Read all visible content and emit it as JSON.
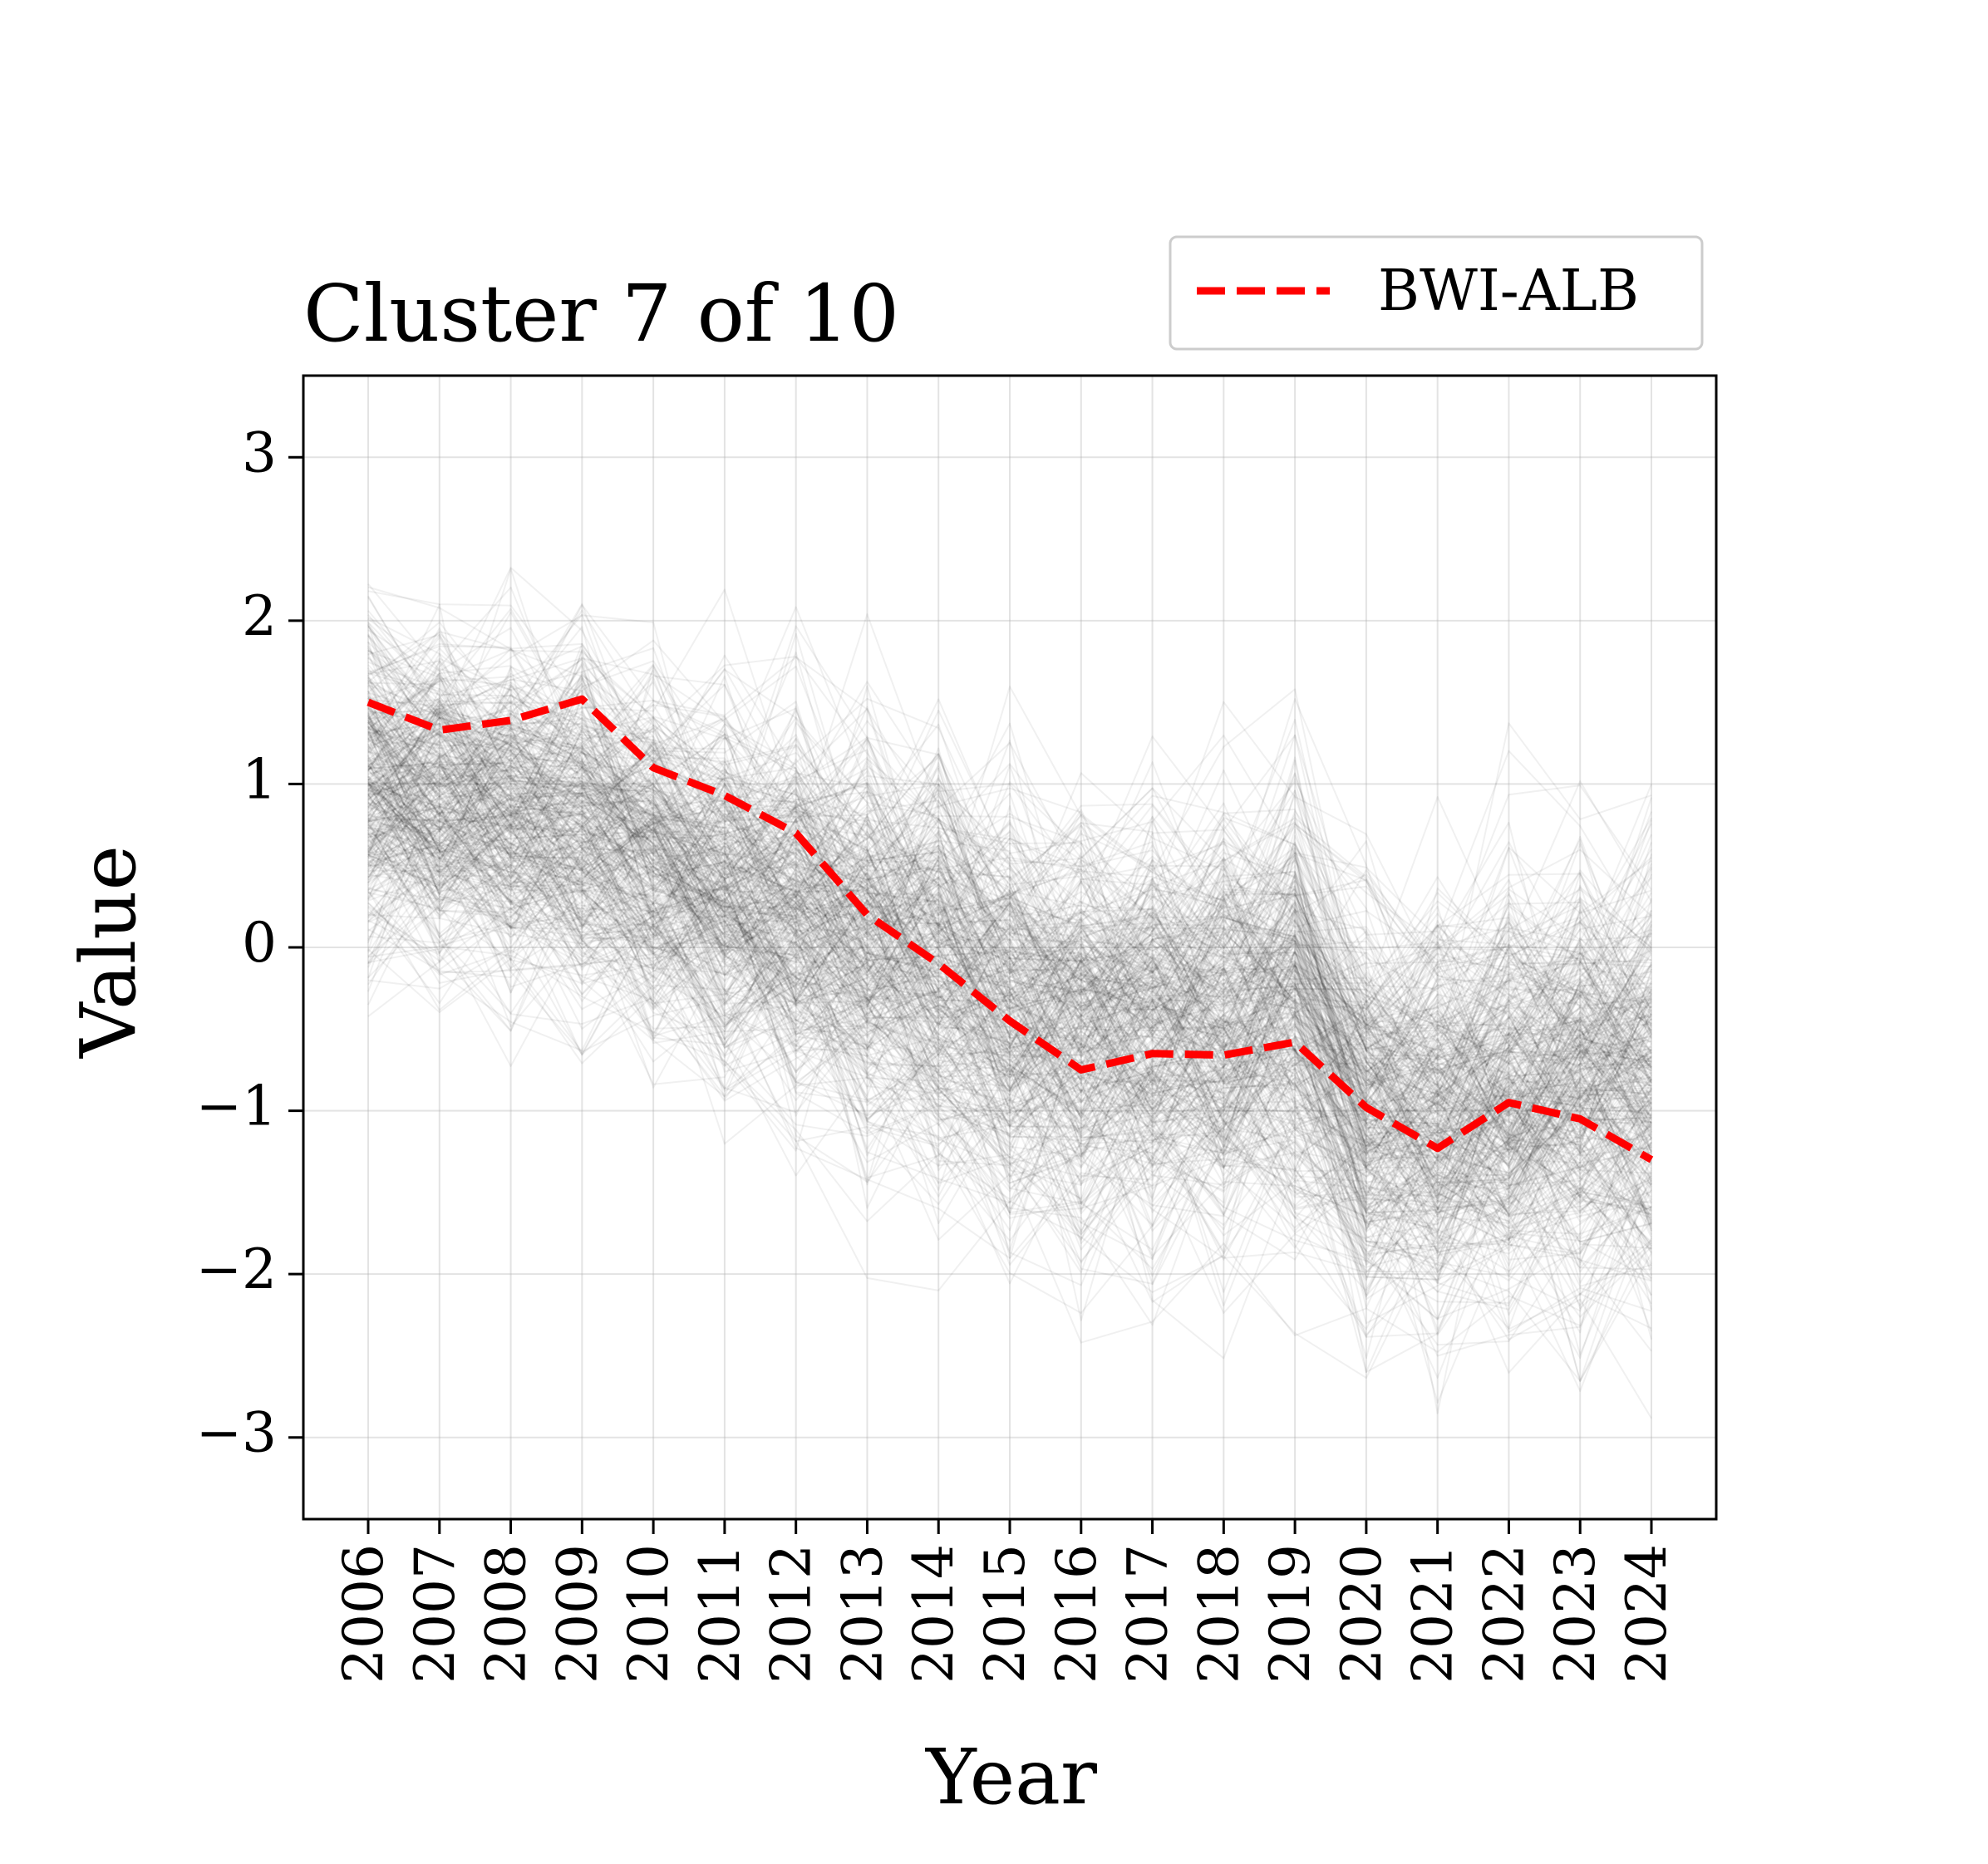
{
  "chart_data": {
    "type": "line",
    "title": "Cluster 7 of 10",
    "xlabel": "Year",
    "ylabel": "Value",
    "x": [
      "2006",
      "2007",
      "2008",
      "2009",
      "2010",
      "2011",
      "2012",
      "2013",
      "2014",
      "2015",
      "2016",
      "2017",
      "2018",
      "2019",
      "2020",
      "2021",
      "2022",
      "2023",
      "2024"
    ],
    "ylim": [
      -3.5,
      3.5
    ],
    "yticks": [
      -3,
      -2,
      -1,
      0,
      1,
      2,
      3
    ],
    "ytick_labels": [
      "−3",
      "−2",
      "−1",
      "0",
      "1",
      "2",
      "3"
    ],
    "grid": true,
    "legend_position": "top-right, above plot",
    "highlight_series": {
      "name": "BWI-ALB",
      "color": "#ff0000",
      "style": "dashed",
      "values": [
        1.5,
        1.33,
        1.39,
        1.52,
        1.1,
        0.93,
        0.7,
        0.2,
        -0.1,
        -0.45,
        -0.75,
        -0.65,
        -0.66,
        -0.58,
        -0.98,
        -1.23,
        -0.95,
        -1.05,
        -1.3
      ]
    },
    "background_series": {
      "description": "many cluster member series",
      "color": "#000000",
      "opacity": 0.06,
      "mean_profile": [
        1.0,
        0.95,
        0.85,
        0.75,
        0.55,
        0.4,
        0.25,
        0.05,
        -0.1,
        -0.35,
        -0.5,
        -0.45,
        -0.45,
        -0.35,
        -0.95,
        -1.0,
        -0.85,
        -0.8,
        -0.75
      ],
      "spread": [
        0.75,
        0.75,
        0.75,
        0.75,
        0.8,
        0.8,
        0.85,
        0.9,
        0.9,
        0.9,
        0.9,
        0.9,
        0.9,
        0.95,
        0.9,
        0.9,
        0.95,
        0.95,
        0.95
      ],
      "count": 420
    }
  }
}
